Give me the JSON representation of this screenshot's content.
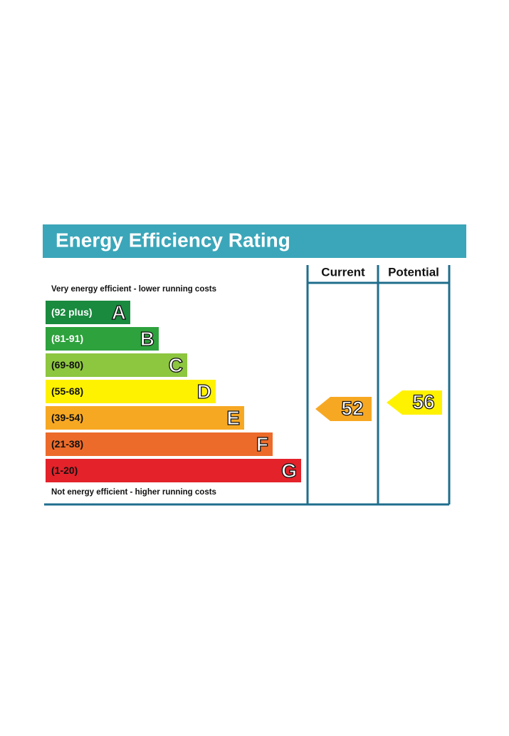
{
  "header": {
    "title": "Energy Efficiency Rating",
    "color": "#3ba6b9"
  },
  "columns": [
    "Current",
    "Potential"
  ],
  "top_note": "Very energy efficient - lower running costs",
  "bottom_note": "Not energy efficient - higher running costs",
  "bands": [
    {
      "range": "(92 plus)",
      "letter": "A",
      "color": "#1a8a3f",
      "text_color": "#ffffff"
    },
    {
      "range": "(81-91)",
      "letter": "B",
      "color": "#2ea23d",
      "text_color": "#ffffff"
    },
    {
      "range": "(69-80)",
      "letter": "C",
      "color": "#8dc63f",
      "text_color": "#111111"
    },
    {
      "range": "(55-68)",
      "letter": "D",
      "color": "#fff200",
      "text_color": "#111111"
    },
    {
      "range": "(39-54)",
      "letter": "E",
      "color": "#f7a823",
      "text_color": "#111111"
    },
    {
      "range": "(21-38)",
      "letter": "F",
      "color": "#ec6b2a",
      "text_color": "#111111"
    },
    {
      "range": "(1-20)",
      "letter": "G",
      "color": "#e3222a",
      "text_color": "#111111"
    }
  ],
  "current": {
    "value": "52",
    "color": "#f7a823"
  },
  "potential": {
    "value": "56",
    "color": "#fff200"
  }
}
